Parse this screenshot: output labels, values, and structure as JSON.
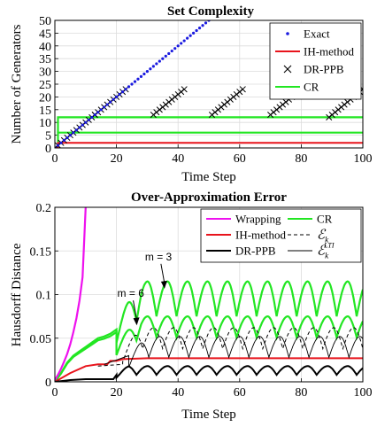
{
  "chart_data": [
    {
      "type": "line",
      "title": "Set Complexity",
      "xlabel": "Time Step",
      "ylabel": "Number of Generators",
      "xlim": [
        0,
        100
      ],
      "ylim": [
        0,
        50
      ],
      "xticks": [
        0,
        20,
        40,
        60,
        80,
        100
      ],
      "yticks": [
        0,
        5,
        10,
        15,
        20,
        25,
        30,
        35,
        40,
        45,
        50
      ],
      "grid": true,
      "legend_position": "top-right",
      "series": [
        {
          "name": "Exact",
          "style": "dots",
          "color": "#1a1adf",
          "x": [
            0,
            52
          ],
          "y": [
            0,
            52
          ]
        },
        {
          "name": "IH-method",
          "style": "line",
          "color": "#e8141c",
          "x": [
            0,
            1,
            1,
            100
          ],
          "y": [
            0,
            0,
            2,
            2
          ]
        },
        {
          "name": "DR-PPB",
          "style": "x-markers",
          "color": "#000000",
          "segments": [
            {
              "x0": 0,
              "x1": 13,
              "y0": 0,
              "y1": 13
            },
            {
              "x0": 13,
              "x1": 23,
              "y0": 13,
              "y1": 23
            },
            {
              "x0": 32,
              "x1": 42,
              "y0": 13,
              "y1": 23
            },
            {
              "x0": 51,
              "x1": 61,
              "y0": 13,
              "y1": 23
            },
            {
              "x0": 70,
              "x1": 80,
              "y0": 13,
              "y1": 23
            },
            {
              "x0": 89,
              "x1": 100,
              "y0": 12,
              "y1": 23
            }
          ]
        },
        {
          "name": "CR",
          "style": "line",
          "color": "#22e622",
          "lines": [
            {
              "x": [
                0,
                1,
                1,
                100
              ],
              "y": [
                0,
                0,
                6,
                6
              ]
            },
            {
              "x": [
                1,
                1,
                100
              ],
              "y": [
                6,
                12,
                12
              ]
            }
          ]
        }
      ]
    },
    {
      "type": "line",
      "title": "Over-Approximation Error",
      "xlabel": "Time Step",
      "ylabel": "Hausdorff Distance",
      "xlim": [
        0,
        100
      ],
      "ylim": [
        0,
        0.2
      ],
      "xticks": [
        0,
        20,
        40,
        60,
        80,
        100
      ],
      "yticks": [
        0,
        0.05,
        0.1,
        0.15,
        0.2
      ],
      "grid": true,
      "legend_position": "top-right",
      "annotations": [
        {
          "text": "m = 3",
          "x": 31,
          "y": 0.123
        },
        {
          "text": "m = 6",
          "x": 22,
          "y": 0.081
        }
      ],
      "series": [
        {
          "name": "Wrapping",
          "color": "#ee11ee",
          "x": [
            0,
            1,
            2,
            3,
            4,
            5,
            6,
            7,
            8,
            9,
            10
          ],
          "y": [
            0.002,
            0.008,
            0.015,
            0.023,
            0.032,
            0.043,
            0.057,
            0.073,
            0.093,
            0.12,
            0.2
          ]
        },
        {
          "name": "CR",
          "color": "#22e622",
          "period": 6.5,
          "lines": [
            {
              "x": [
                0,
                2,
                4,
                6,
                8,
                10,
                12,
                14,
                16,
                18,
                20
              ],
              "y": [
                0,
                0.01,
                0.022,
                0.03,
                0.035,
                0.04,
                0.045,
                0.05,
                0.052,
                0.055,
                0.06
              ],
              "upper_mean": 0.095,
              "upper_amp": 0.02,
              "lower_mean": 0.063,
              "lower_amp": 0.012
            }
          ]
        },
        {
          "name": "IH-method",
          "color": "#e8141c",
          "x": [
            0,
            5,
            10,
            14,
            17,
            18,
            20,
            22,
            30,
            100
          ],
          "y": [
            0,
            0.01,
            0.018,
            0.02,
            0.02,
            0.024,
            0.024,
            0.026,
            0.027,
            0.027
          ]
        },
        {
          "name": "ℰk",
          "color": "#000000",
          "dash": true,
          "mean": 0.05,
          "amp": 0.012,
          "period": 6.5,
          "start": 22
        },
        {
          "name": "DR-PPB",
          "color": "#000000",
          "mean": 0.013,
          "amp": 0.005,
          "period": 6.5,
          "start": 20
        },
        {
          "name": "ℰkLTI",
          "color": "#000000",
          "mean": 0.04,
          "amp": 0.012,
          "period": 6.5,
          "start": 24
        }
      ]
    }
  ]
}
